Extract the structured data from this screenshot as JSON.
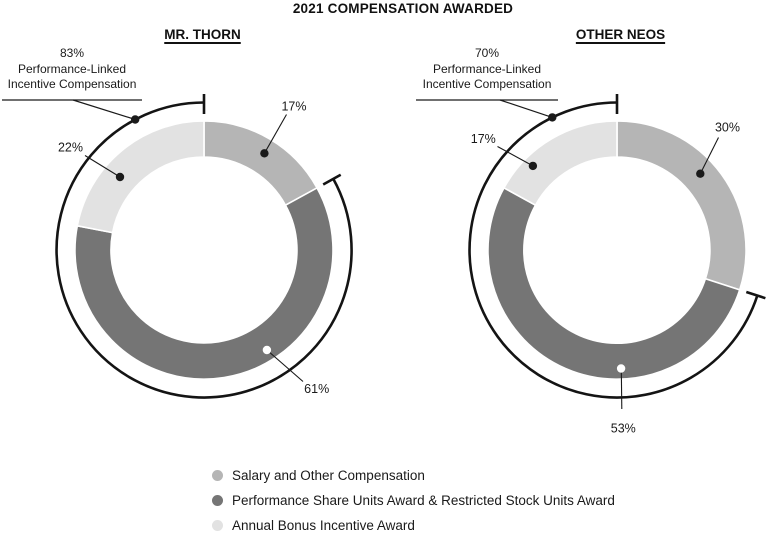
{
  "title": "2021 COMPENSATION AWARDED",
  "chart_data": [
    {
      "type": "pie",
      "variant": "donut",
      "title": "MR. THORN",
      "units": "%",
      "start_angle_deg": 0,
      "direction": "clockwise",
      "slices": [
        {
          "name": "Salary and Other Compensation",
          "value": 17,
          "color": "#b5b5b5"
        },
        {
          "name": "Performance Share Units Award & Restricted Stock Units Award",
          "value": 61,
          "color": "#757575"
        },
        {
          "name": "Annual Bonus Incentive Award",
          "value": 22,
          "color": "#e2e2e2"
        }
      ],
      "bracket": {
        "value": 83,
        "label_lines": [
          "83%",
          "Performance-Linked",
          "Incentive Compensation"
        ],
        "spans_slice_indexes": [
          1,
          2
        ]
      }
    },
    {
      "type": "pie",
      "variant": "donut",
      "title": "OTHER NEOS",
      "units": "%",
      "start_angle_deg": 0,
      "direction": "clockwise",
      "slices": [
        {
          "name": "Salary and Other Compensation",
          "value": 30,
          "color": "#b5b5b5"
        },
        {
          "name": "Performance Share Units Award & Restricted Stock Units Award",
          "value": 53,
          "color": "#757575"
        },
        {
          "name": "Annual Bonus Incentive Award",
          "value": 17,
          "color": "#e2e2e2"
        }
      ],
      "bracket": {
        "value": 70,
        "label_lines": [
          "70%",
          "Performance-Linked",
          "Incentive Compensation"
        ],
        "spans_slice_indexes": [
          1,
          2
        ]
      }
    }
  ],
  "legend": {
    "items": [
      {
        "label": "Salary and Other Compensation",
        "color": "#b5b5b5"
      },
      {
        "label": "Performance Share Units Award & Restricted Stock Units Award",
        "color": "#757575"
      },
      {
        "label": "Annual Bonus Incentive Award",
        "color": "#e2e2e2"
      }
    ]
  },
  "colors": {
    "ink": "#1a1a1a",
    "bracket_stroke": "#141414",
    "slice_separator": "#ffffff"
  }
}
